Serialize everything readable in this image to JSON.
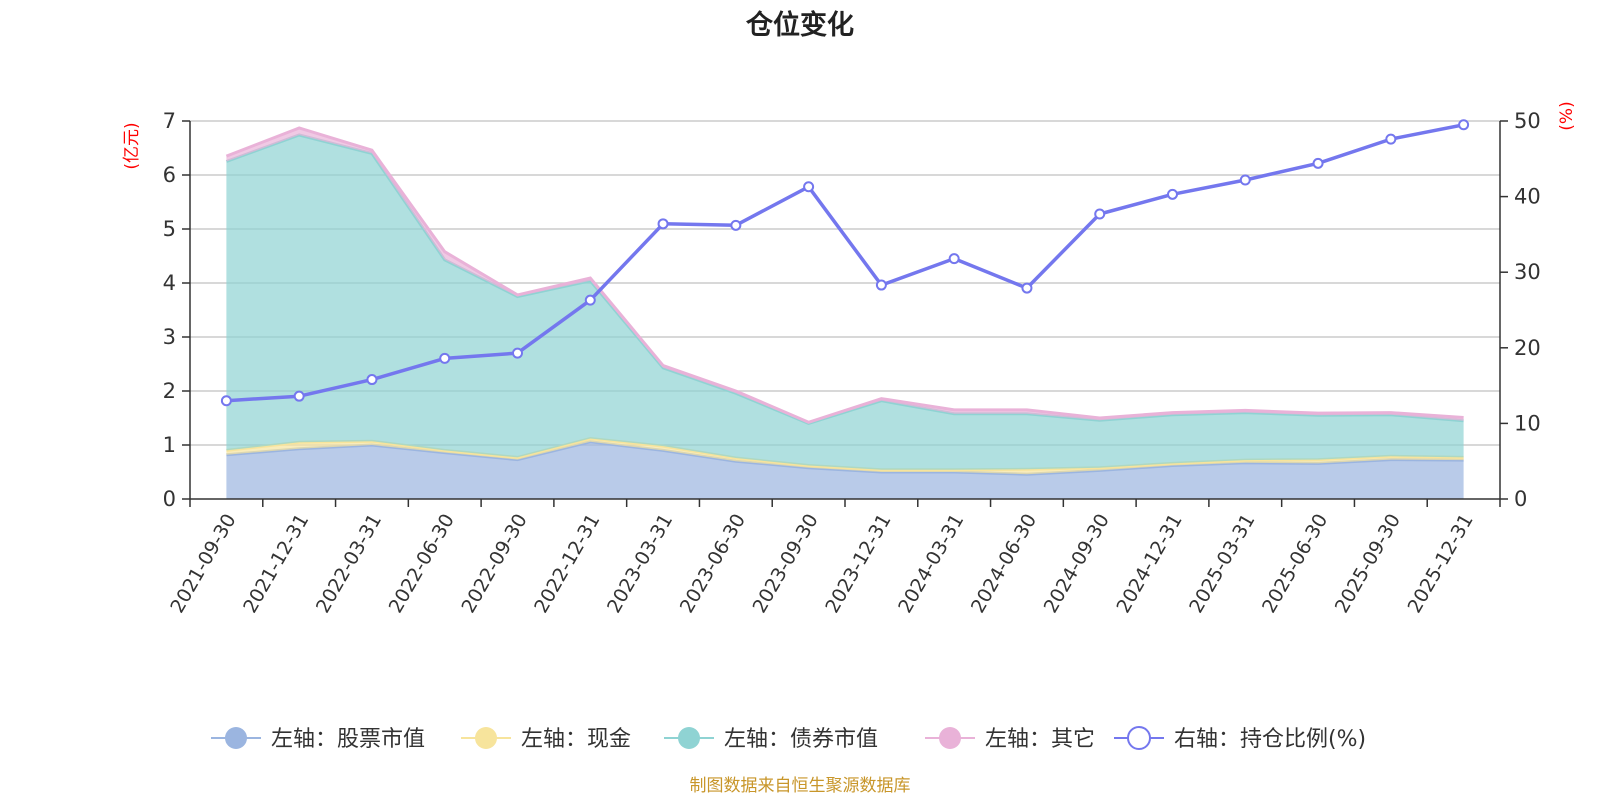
{
  "chart_data": {
    "type": "area",
    "title": "仓位变化",
    "categories": [
      "2021-09-30",
      "2021-12-31",
      "2022-03-31",
      "2022-06-30",
      "2022-09-30",
      "2022-12-31",
      "2023-03-31",
      "2023-06-30",
      "2023-09-30",
      "2023-12-31",
      "2024-03-31",
      "2024-06-30",
      "2024-09-30",
      "2024-12-31",
      "2025-03-31",
      "2025-06-30",
      "2025-09-30",
      "2025-12-31"
    ],
    "left_axis": {
      "label": "(亿元)",
      "ylim": [
        0,
        7
      ],
      "ticks": [
        "0",
        "1",
        "2",
        "3",
        "4",
        "5",
        "6",
        "7"
      ]
    },
    "right_axis": {
      "label": "(%)",
      "ylim": [
        0,
        50
      ],
      "ticks": [
        "0",
        "10",
        "20",
        "30",
        "40",
        "50"
      ]
    },
    "stacked_series": [
      {
        "name": "左轴：股票市值",
        "color": "#9bb5e0",
        "values": [
          0.82,
          0.93,
          1.0,
          0.86,
          0.73,
          1.06,
          0.9,
          0.7,
          0.58,
          0.5,
          0.5,
          0.46,
          0.53,
          0.62,
          0.67,
          0.66,
          0.73,
          0.72
        ]
      },
      {
        "name": "左轴：现金",
        "color": "#f7e49c",
        "values": [
          0.08,
          0.12,
          0.07,
          0.04,
          0.04,
          0.06,
          0.08,
          0.06,
          0.04,
          0.04,
          0.04,
          0.09,
          0.05,
          0.04,
          0.05,
          0.07,
          0.06,
          0.05
        ]
      },
      {
        "name": "左轴：债券市值",
        "color": "#8fd3d3",
        "values": [
          5.35,
          5.69,
          5.33,
          3.53,
          2.98,
          2.92,
          1.45,
          1.2,
          0.78,
          1.28,
          1.04,
          1.03,
          0.88,
          0.9,
          0.88,
          0.82,
          0.77,
          0.68
        ]
      },
      {
        "name": "左轴：其它",
        "color": "#e9b2d8",
        "values": [
          0.1,
          0.13,
          0.06,
          0.15,
          0.03,
          0.05,
          0.04,
          0.04,
          0.02,
          0.04,
          0.07,
          0.07,
          0.04,
          0.04,
          0.04,
          0.04,
          0.04,
          0.06
        ]
      }
    ],
    "line_series": {
      "name": "右轴：持仓比例(%)",
      "color": "#7477ee",
      "values": [
        13.0,
        13.6,
        15.8,
        18.6,
        19.3,
        26.3,
        36.4,
        36.2,
        41.3,
        28.3,
        31.8,
        27.9,
        37.7,
        40.3,
        42.2,
        44.4,
        47.6,
        49.5
      ]
    },
    "legend_position": "bottom",
    "grid": true
  },
  "footer": {
    "source": "制图数据来自恒生聚源数据库"
  }
}
